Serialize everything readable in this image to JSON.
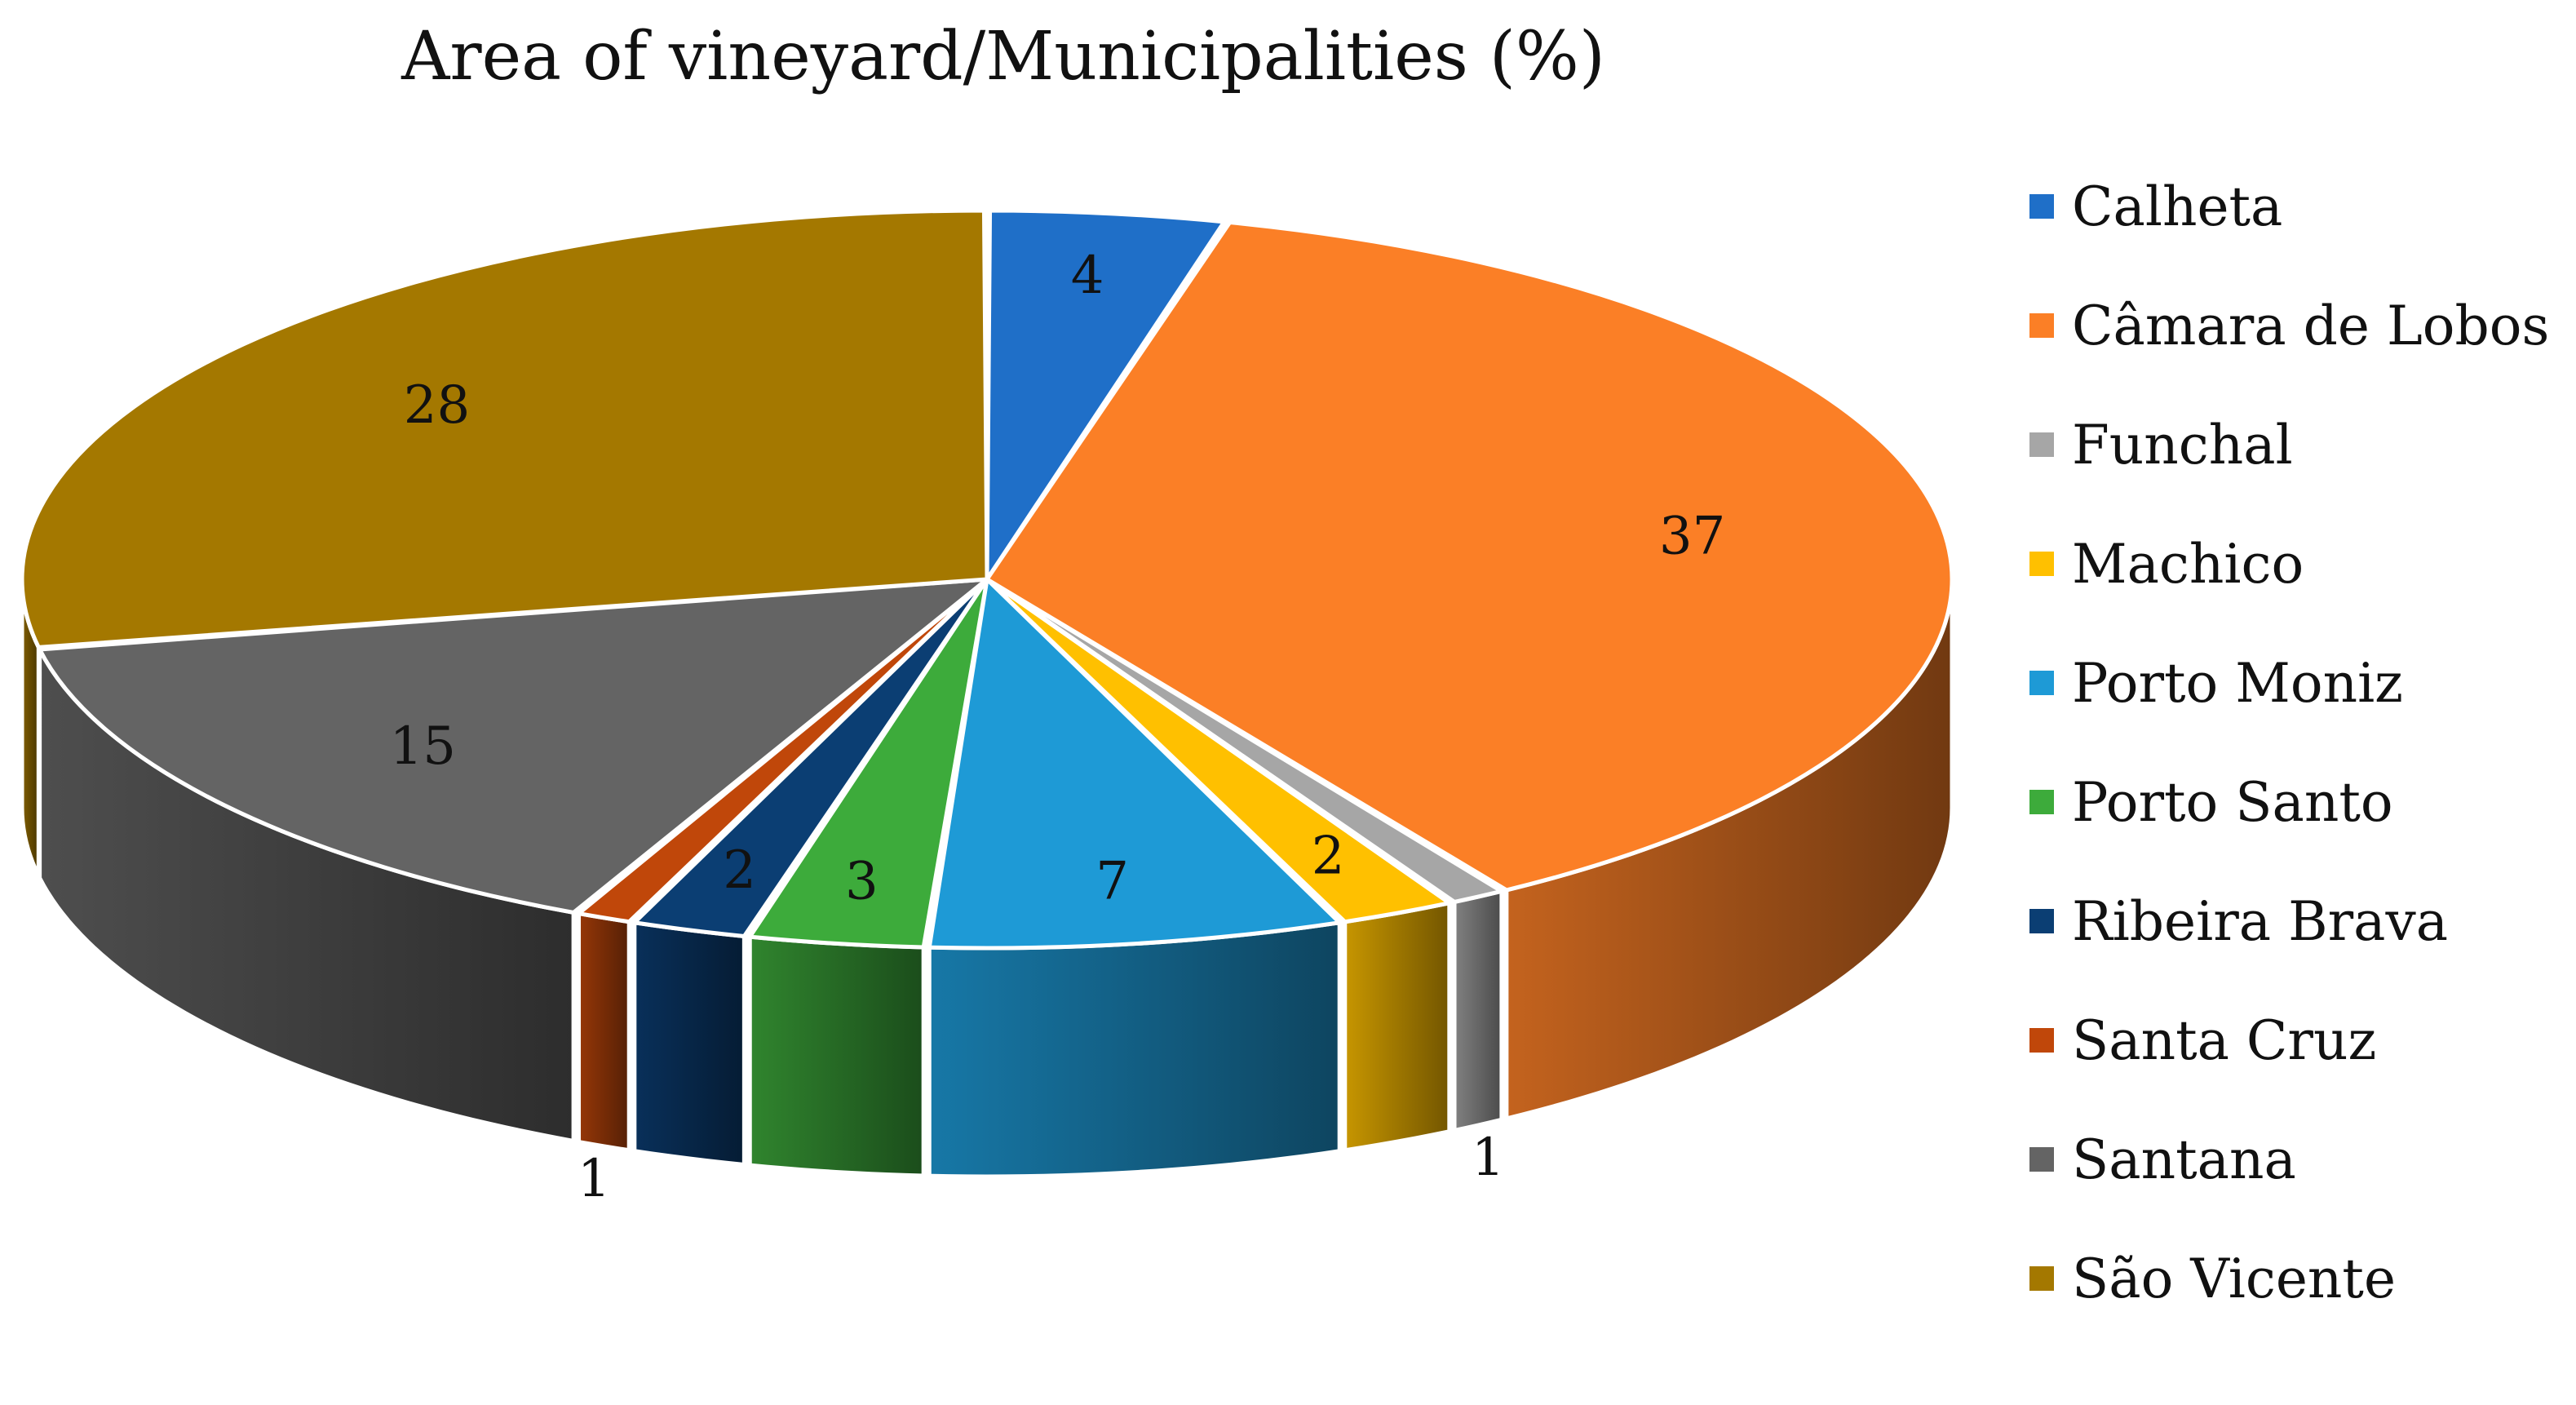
{
  "chart_data": {
    "type": "pie",
    "title": "Area of vineyard/Municipalities (%)",
    "legend_position": "right",
    "style": "3d",
    "slices": [
      {
        "name": "Calheta",
        "value": 4,
        "color": "#1f6fc8"
      },
      {
        "name": "Câmara de Lobos",
        "value": 37,
        "color": "#fb7f26"
      },
      {
        "name": "Funchal",
        "value": 1,
        "color": "#a6a6a6"
      },
      {
        "name": "Machico",
        "value": 2,
        "color": "#ffc000"
      },
      {
        "name": "Porto Moniz",
        "value": 7,
        "color": "#1e9ad6"
      },
      {
        "name": "Porto Santo",
        "value": 3,
        "color": "#3dab3b"
      },
      {
        "name": "Ribeira Brava",
        "value": 2,
        "color": "#0b3e73"
      },
      {
        "name": "Santa Cruz",
        "value": 1,
        "color": "#c0470a"
      },
      {
        "name": "Santana",
        "value": 15,
        "color": "#646464"
      },
      {
        "name": "São Vicente",
        "value": 28,
        "color": "#a47800"
      }
    ]
  }
}
